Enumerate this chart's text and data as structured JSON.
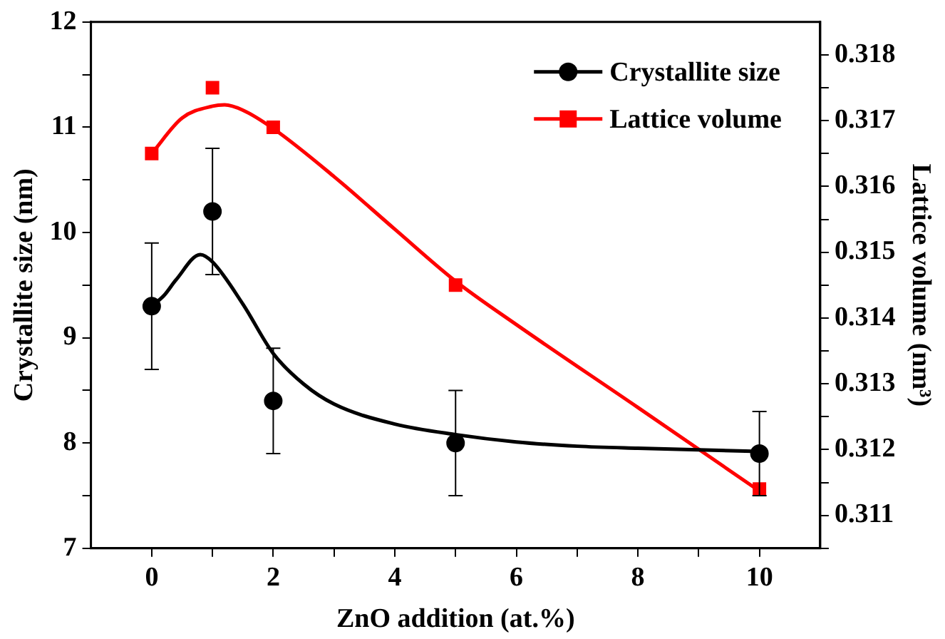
{
  "chart_data": {
    "type": "scatter",
    "xlabel": "ZnO addition (at.%)",
    "ylabel": "Crystallite size (nm)",
    "y2label": "Lattice volume (nm³)",
    "xlim": [
      -1,
      11
    ],
    "xticks": [
      0,
      {
        "value": 1,
        "label": null
      },
      2,
      {
        "value": 3,
        "label": null
      },
      4,
      {
        "value": 5,
        "label": null
      },
      6,
      {
        "value": 7,
        "label": null
      },
      8,
      {
        "value": 9,
        "label": null
      },
      10
    ],
    "ylim": [
      7,
      12
    ],
    "yticks": [
      7,
      {
        "value": 7.5,
        "label": null
      },
      8,
      {
        "value": 8.5,
        "label": null
      },
      9,
      {
        "value": 9.5,
        "label": null
      },
      10,
      {
        "value": 10.5,
        "label": null
      },
      11,
      {
        "value": 11.5,
        "label": null
      },
      12
    ],
    "y2lim": [
      0.3105,
      0.3185
    ],
    "y2ticks": [
      {
        "value": 0.3105,
        "label": null
      },
      0.311,
      {
        "value": 0.3115,
        "label": null
      },
      0.312,
      {
        "value": 0.3125,
        "label": null
      },
      0.313,
      {
        "value": 0.3135,
        "label": null
      },
      0.314,
      {
        "value": 0.3145,
        "label": null
      },
      0.315,
      {
        "value": 0.3155,
        "label": null
      },
      0.316,
      {
        "value": 0.3165,
        "label": null
      },
      0.317,
      {
        "value": 0.3175,
        "label": null
      },
      0.318
    ],
    "legend": "top right",
    "grid": false,
    "series": [
      {
        "name": "Crystallite size",
        "color": "#000000",
        "marker": "circle",
        "x": [
          0,
          1,
          2,
          5,
          10
        ],
        "values": [
          9.3,
          10.2,
          8.4,
          8.0,
          7.9
        ],
        "errors": [
          0.6,
          0.6,
          0.5,
          0.5,
          0.4
        ]
      },
      {
        "name": "Lattice volume",
        "color": "#ff0000",
        "marker": "square",
        "axis": "y2",
        "x": [
          0,
          1,
          2,
          5,
          10
        ],
        "values": [
          0.3165,
          0.3175,
          0.3169,
          0.3145,
          0.3114
        ]
      },
      {
        "type": "line",
        "color": "#000000",
        "marker": "none",
        "x": [
          0,
          0.2,
          0.4,
          0.8,
          1,
          1.5,
          2,
          2.5,
          3,
          4,
          5,
          6,
          7,
          8,
          10
        ],
        "values": [
          9.3,
          9.4,
          9.55,
          9.79,
          9.72,
          9.32,
          8.85,
          8.56,
          8.37,
          8.18,
          8.08,
          8.01,
          7.97,
          7.95,
          7.92
        ]
      },
      {
        "type": "line",
        "color": "#ff0000",
        "marker": "none",
        "axis": "y2",
        "x": [
          0,
          0.5,
          1,
          1.2,
          1.5,
          2,
          3,
          4,
          5,
          6,
          8,
          10
        ],
        "values": [
          0.3165,
          0.31704,
          0.31722,
          0.31724,
          0.31716,
          0.31688,
          0.31615,
          0.31535,
          0.31456,
          0.3139,
          0.31264,
          0.31137
        ]
      }
    ]
  }
}
